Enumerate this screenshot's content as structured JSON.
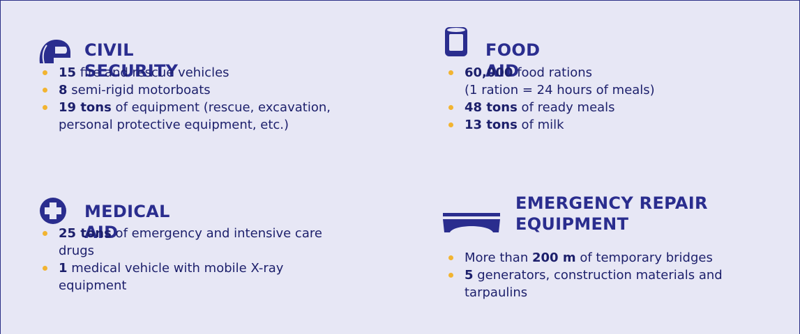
{
  "sections": [
    {
      "title": "CIVIL SECURITY",
      "items": [
        {
          "bold": "15",
          "post": " fire and rescue vehicles"
        },
        {
          "bold": "8",
          "post": " semi-rigid motorboats"
        },
        {
          "bold": "19 tons",
          "post": " of equipment (rescue, excavation, personal protective equipment, etc.)"
        }
      ]
    },
    {
      "title": "MEDICAL AID",
      "items": [
        {
          "bold": "25 tons",
          "post": " of emergency and intensive care drugs"
        },
        {
          "bold": "1",
          "post": " medical vehicle with mobile X-ray equipment"
        }
      ]
    },
    {
      "title": "FOOD AID",
      "items": [
        {
          "bold": "60,000",
          "post": " food rations",
          "note": "(1 ration = 24 hours of meals)"
        },
        {
          "bold": "48 tons",
          "post": " of ready meals"
        },
        {
          "bold": "13 tons",
          "post": " of milk"
        }
      ]
    },
    {
      "title": "EMERGENCY REPAIR EQUIPMENT",
      "items": [
        {
          "pre": "More than ",
          "bold": "200 m",
          "post": " of temporary bridges"
        },
        {
          "bold": "5",
          "post": " generators, construction materials and tarpaulins"
        }
      ]
    }
  ]
}
